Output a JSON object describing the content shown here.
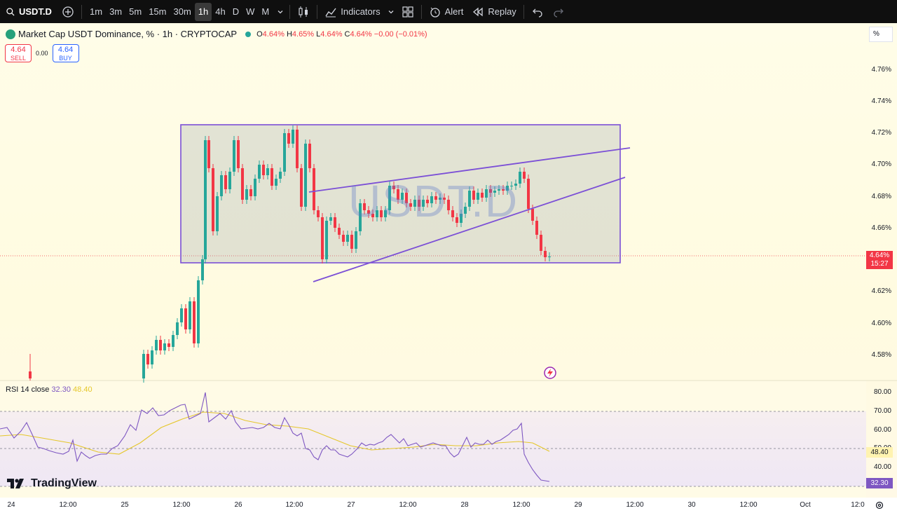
{
  "toolbar": {
    "symbol": "USDT.D",
    "intervals": [
      "1m",
      "3m",
      "5m",
      "15m",
      "30m",
      "1h",
      "4h",
      "D",
      "W",
      "M"
    ],
    "active_interval": "1h",
    "indicators_label": "Indicators",
    "alert_label": "Alert",
    "replay_label": "Replay"
  },
  "legend": {
    "title": "Market Cap USDT Dominance, % · 1h · CRYPTOCAP",
    "open_label": "O",
    "open": "4.64%",
    "high_label": "H",
    "high": "4.65%",
    "low_label": "L",
    "low": "4.64%",
    "close_label": "C",
    "close": "4.64%",
    "change": "−0.00 (−0.01%)"
  },
  "trade": {
    "sell_price": "4.64",
    "sell_label": "SELL",
    "spread": "0.00",
    "buy_price": "4.64",
    "buy_label": "BUY"
  },
  "price_axis": {
    "unit_label": "%",
    "ticks": [
      "4.76%",
      "4.74%",
      "4.72%",
      "4.70%",
      "4.68%",
      "4.66%",
      "4.62%",
      "4.60%",
      "4.58%"
    ],
    "current_price": "4.64%",
    "countdown": "15:27"
  },
  "watermark": "USDT.D",
  "rsi": {
    "label": "RSI 14 close",
    "rsi_value": "32.30",
    "ma_value": "48.40",
    "ticks": [
      "80.00",
      "70.00",
      "60.00",
      "50.00",
      "40.00"
    ],
    "tag_ma": "48.40",
    "tag_rsi": "32.30"
  },
  "time_axis": {
    "labels": [
      "24",
      "12:00",
      "25",
      "12:00",
      "26",
      "12:00",
      "27",
      "12:00",
      "28",
      "12:00",
      "29",
      "12:00",
      "30",
      "12:00",
      "Oct",
      "12:0"
    ]
  },
  "branding": "TradingView",
  "colors": {
    "up": "#26a69a",
    "down": "#f23645",
    "drawing": "#7b4fd6",
    "rsi": "#7e57c2",
    "rsi_ma": "#e5c72a"
  }
}
